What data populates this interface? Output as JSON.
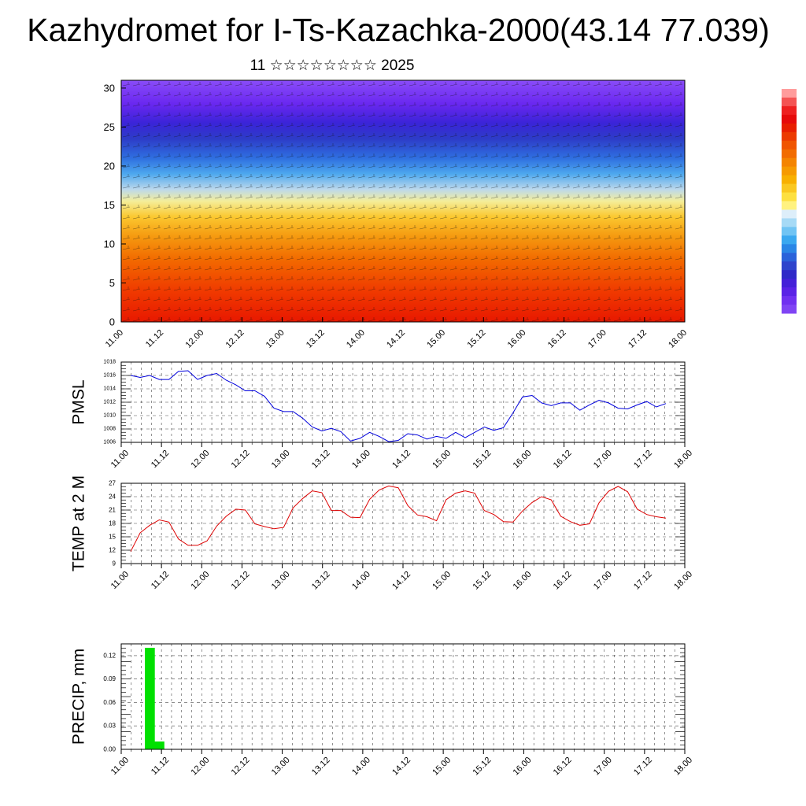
{
  "page": {
    "title": "Kazhydromet for I-Ts-Kazachka-2000(43.14 77.039)",
    "subtitle": "11 ☆☆☆☆☆☆☆☆ 2025"
  },
  "time_axis": {
    "labels": [
      "11.00",
      "11.12",
      "12.00",
      "12.12",
      "13.00",
      "13.12",
      "14.00",
      "14.12",
      "15.00",
      "15.12",
      "16.00",
      "16.12",
      "17.00",
      "17.12",
      "18.00"
    ]
  },
  "colors": {
    "pmsl_line": "#0000dd",
    "temp_line": "#dd0000",
    "precip_bar": "#00e000",
    "grid": "#000000"
  },
  "chart_data": [
    {
      "type": "heatmap",
      "name": "upper-air section",
      "x_ticks": [
        "11.00",
        "11.12",
        "12.00",
        "12.12",
        "13.00",
        "13.12",
        "14.00",
        "14.12",
        "15.00",
        "15.12",
        "16.00",
        "16.12",
        "17.00",
        "17.12",
        "18.00"
      ],
      "y_ticks": [
        "0",
        "5",
        "10",
        "15",
        "20",
        "25",
        "30"
      ],
      "ylim": [
        0,
        31
      ],
      "color_bands": [
        {
          "y": 0,
          "color": "#e81800"
        },
        {
          "y": 4,
          "color": "#f03a00"
        },
        {
          "y": 8,
          "color": "#f26a00"
        },
        {
          "y": 11,
          "color": "#f59a10"
        },
        {
          "y": 13.5,
          "color": "#fbc830"
        },
        {
          "y": 15.5,
          "color": "#f4ee9a"
        },
        {
          "y": 17,
          "color": "#bcd8ec"
        },
        {
          "y": 19,
          "color": "#4da8ee"
        },
        {
          "y": 21,
          "color": "#2f6fe0"
        },
        {
          "y": 23.5,
          "color": "#2d3cc8"
        },
        {
          "y": 25.5,
          "color": "#3a24d8"
        },
        {
          "y": 28,
          "color": "#6a28f0"
        },
        {
          "y": 31,
          "color": "#8a4cf8"
        }
      ],
      "overlay": "wind barbs"
    },
    {
      "type": "line",
      "ylabel": "PMSL",
      "ylim": [
        1006,
        1018
      ],
      "y_ticks": [
        "1006",
        "1008",
        "1010",
        "1012",
        "1014",
        "1016",
        "1018"
      ],
      "x_ticks": [
        "11.00",
        "11.12",
        "12.00",
        "12.12",
        "13.00",
        "13.12",
        "14.00",
        "14.12",
        "15.00",
        "15.12",
        "16.00",
        "16.12",
        "17.00",
        "17.12",
        "18.00"
      ],
      "x_step_hours": 3,
      "series": [
        {
          "values": [
            1016.0,
            1015.7,
            1016.0,
            1015.4,
            1015.4,
            1016.6,
            1016.7,
            1015.4,
            1016.0,
            1016.3,
            1015.3,
            1014.6,
            1013.7,
            1013.7,
            1012.9,
            1011.1,
            1010.6,
            1010.6,
            1009.6,
            1008.3,
            1007.7,
            1008.1,
            1007.6,
            1006.2,
            1006.6,
            1007.5,
            1006.9,
            1006.1,
            1006.3,
            1007.3,
            1007.1,
            1006.5,
            1006.9,
            1006.6,
            1007.5,
            1006.7,
            1007.5,
            1008.3,
            1007.8,
            1008.2,
            1010.4,
            1012.8,
            1013.0,
            1011.9,
            1011.5,
            1011.9,
            1011.9,
            1010.8,
            1011.6,
            1012.3,
            1011.9,
            1011.1,
            1011.0,
            1011.6,
            1012.1,
            1011.3,
            1011.8
          ]
        }
      ]
    },
    {
      "type": "line",
      "ylabel": "TEMP at 2 M",
      "ylim": [
        9,
        27
      ],
      "y_ticks": [
        "9",
        "12",
        "15",
        "18",
        "21",
        "24",
        "27"
      ],
      "x_ticks": [
        "11.00",
        "11.12",
        "12.00",
        "12.12",
        "13.00",
        "13.12",
        "14.00",
        "14.12",
        "15.00",
        "15.12",
        "16.00",
        "16.12",
        "17.00",
        "17.12",
        "18.00"
      ],
      "x_step_hours": 3,
      "series": [
        {
          "values": [
            11.7,
            15.9,
            17.6,
            18.8,
            18.3,
            14.5,
            13.1,
            13.1,
            14.1,
            17.4,
            19.6,
            21.2,
            21.0,
            17.9,
            17.3,
            16.8,
            17.1,
            21.5,
            23.6,
            25.3,
            24.9,
            20.9,
            20.9,
            19.4,
            19.3,
            23.4,
            25.5,
            26.4,
            26.0,
            22.0,
            19.9,
            19.5,
            18.6,
            23.3,
            24.8,
            25.3,
            24.8,
            20.9,
            20.0,
            18.4,
            18.3,
            20.8,
            22.7,
            24.0,
            23.3,
            19.6,
            18.4,
            17.6,
            17.9,
            22.6,
            25.2,
            26.3,
            25.1,
            21.2,
            20.0,
            19.5,
            19.2
          ]
        }
      ]
    },
    {
      "type": "bar",
      "ylabel": "PRECIP, mm",
      "ylim": [
        0,
        0.135
      ],
      "y_ticks": [
        "0.00",
        "0.03",
        "0.06",
        "0.09",
        "0.12"
      ],
      "x_ticks": [
        "11.00",
        "11.12",
        "12.00",
        "12.12",
        "13.00",
        "13.12",
        "14.00",
        "14.12",
        "15.00",
        "15.12",
        "16.00",
        "16.12",
        "17.00",
        "17.12",
        "18.00"
      ],
      "x_step_hours": 3,
      "series": [
        {
          "values": [
            0,
            0.13,
            0.01,
            0,
            0,
            0,
            0,
            0,
            0,
            0,
            0,
            0,
            0,
            0,
            0,
            0,
            0,
            0,
            0,
            0,
            0,
            0,
            0,
            0,
            0,
            0,
            0,
            0,
            0,
            0,
            0,
            0,
            0,
            0,
            0,
            0,
            0,
            0,
            0,
            0,
            0,
            0,
            0,
            0,
            0,
            0,
            0,
            0,
            0,
            0,
            0,
            0,
            0,
            0,
            0,
            0
          ]
        }
      ]
    }
  ],
  "colorbar": {
    "colors": [
      "#ff9c9c",
      "#f45454",
      "#ee2020",
      "#e60a0a",
      "#e81e00",
      "#ec3a00",
      "#f05400",
      "#f26c00",
      "#f48400",
      "#f69a00",
      "#f8b000",
      "#fac820",
      "#fde040",
      "#fff280",
      "#ddeefa",
      "#a6daf6",
      "#70c4f4",
      "#3aa8f0",
      "#2a86e6",
      "#2a62da",
      "#2e44cc",
      "#3028c8",
      "#4420d8",
      "#5a22e6",
      "#7030f0",
      "#8044f4"
    ]
  }
}
